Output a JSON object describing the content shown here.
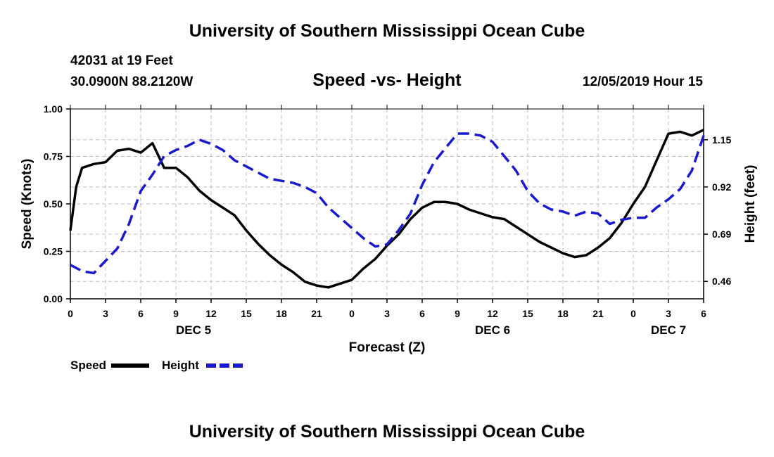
{
  "header": {
    "title": "University of Southern Mississippi Ocean Cube",
    "station": "42031 at 19 Feet",
    "location": "30.0900N 88.2120W",
    "chart_title": "Speed -vs- Height",
    "timestamp": "12/05/2019 Hour 15"
  },
  "footer": {
    "title": "University of Southern Mississippi Ocean Cube"
  },
  "chart_data": {
    "type": "line",
    "title": "Speed -vs- Height",
    "xlabel": "Forecast (Z)",
    "ylabel": "Speed (Knots)",
    "y2label": "Height (feet)",
    "x_range": [
      0,
      54
    ],
    "ylim": [
      0,
      1
    ],
    "y2lim": [
      0.375,
      1.3
    ],
    "grid": true,
    "x_ticks": [
      {
        "x": 0,
        "label": "0"
      },
      {
        "x": 3,
        "label": "3"
      },
      {
        "x": 6,
        "label": "6"
      },
      {
        "x": 9,
        "label": "9"
      },
      {
        "x": 12,
        "label": "12"
      },
      {
        "x": 15,
        "label": "15"
      },
      {
        "x": 18,
        "label": "18"
      },
      {
        "x": 21,
        "label": "21"
      },
      {
        "x": 24,
        "label": "0"
      },
      {
        "x": 27,
        "label": "3"
      },
      {
        "x": 30,
        "label": "6"
      },
      {
        "x": 33,
        "label": "9"
      },
      {
        "x": 36,
        "label": "12"
      },
      {
        "x": 39,
        "label": "15"
      },
      {
        "x": 42,
        "label": "18"
      },
      {
        "x": 45,
        "label": "21"
      },
      {
        "x": 48,
        "label": "0"
      },
      {
        "x": 51,
        "label": "3"
      },
      {
        "x": 54,
        "label": "6"
      }
    ],
    "day_labels": [
      {
        "x": 10.5,
        "label": "DEC 5"
      },
      {
        "x": 36,
        "label": "DEC 6"
      },
      {
        "x": 51,
        "label": "DEC 7"
      }
    ],
    "y_ticks": [
      "0.00",
      "0.25",
      "0.50",
      "0.75",
      "1.00"
    ],
    "y2_ticks": [
      "0.46",
      "0.69",
      "0.92",
      "1.15"
    ],
    "legend": [
      {
        "label": "Speed",
        "color": "#000000",
        "style": "solid"
      },
      {
        "label": "Height",
        "color": "#1a1acc",
        "style": "dashed"
      }
    ],
    "series": [
      {
        "name": "Speed",
        "axis": "left",
        "color": "#000000",
        "x": [
          0,
          0.5,
          1,
          2,
          3,
          4,
          5,
          6,
          7,
          8,
          9,
          10,
          11,
          12,
          13,
          14,
          15,
          16,
          17,
          18,
          19,
          20,
          21,
          22,
          23,
          24,
          25,
          26,
          27,
          28,
          29,
          30,
          31,
          32,
          33,
          34,
          35,
          36,
          37,
          38,
          39,
          40,
          41,
          42,
          43,
          44,
          45,
          46,
          47,
          48,
          49,
          50,
          51,
          52,
          53,
          54
        ],
        "values": [
          0.36,
          0.59,
          0.69,
          0.71,
          0.72,
          0.78,
          0.79,
          0.77,
          0.82,
          0.69,
          0.69,
          0.64,
          0.57,
          0.52,
          0.48,
          0.44,
          0.36,
          0.29,
          0.23,
          0.18,
          0.14,
          0.09,
          0.07,
          0.06,
          0.08,
          0.1,
          0.16,
          0.21,
          0.28,
          0.34,
          0.42,
          0.48,
          0.51,
          0.51,
          0.5,
          0.47,
          0.45,
          0.43,
          0.42,
          0.38,
          0.34,
          0.3,
          0.27,
          0.24,
          0.22,
          0.23,
          0.27,
          0.32,
          0.4,
          0.5,
          0.59,
          0.73,
          0.87,
          0.88,
          0.86,
          0.89
        ]
      },
      {
        "name": "Height",
        "axis": "right",
        "color": "#1a1acc",
        "x": [
          0,
          1,
          2,
          3,
          4,
          5,
          6,
          7,
          8,
          9,
          10,
          11,
          12,
          13,
          14,
          15,
          16,
          17,
          18,
          19,
          20,
          21,
          22,
          23,
          24,
          25,
          26,
          27,
          28,
          29,
          30,
          31,
          32,
          33,
          34,
          35,
          36,
          37,
          38,
          39,
          40,
          41,
          42,
          43,
          44,
          45,
          46,
          47,
          48,
          49,
          50,
          51,
          52,
          53,
          54
        ],
        "values": [
          0.54,
          0.51,
          0.5,
          0.56,
          0.62,
          0.74,
          0.9,
          0.98,
          1.07,
          1.1,
          1.12,
          1.15,
          1.13,
          1.1,
          1.05,
          1.02,
          0.99,
          0.96,
          0.95,
          0.94,
          0.92,
          0.89,
          0.82,
          0.77,
          0.72,
          0.67,
          0.63,
          0.64,
          0.71,
          0.79,
          0.93,
          1.04,
          1.11,
          1.18,
          1.18,
          1.17,
          1.14,
          1.07,
          1.0,
          0.9,
          0.84,
          0.81,
          0.8,
          0.78,
          0.8,
          0.79,
          0.74,
          0.76,
          0.77,
          0.77,
          0.82,
          0.86,
          0.91,
          1.0,
          1.17
        ]
      }
    ]
  }
}
